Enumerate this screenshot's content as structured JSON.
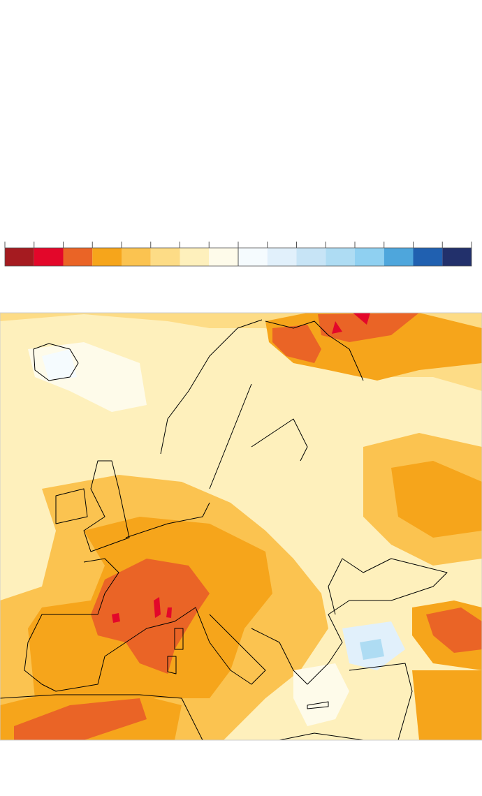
{
  "legend": {
    "colors": [
      "#a51b20",
      "#e3072a",
      "#ea6426",
      "#f6a51b",
      "#fbc350",
      "#fddc86",
      "#fef0bc",
      "#fefbea",
      "#f5fbfe",
      "#e1f0fb",
      "#c7e4f6",
      "#aedcf3",
      "#8fd0f1",
      "#4ea6dc",
      "#2060b0",
      "#22306b"
    ]
  }
}
